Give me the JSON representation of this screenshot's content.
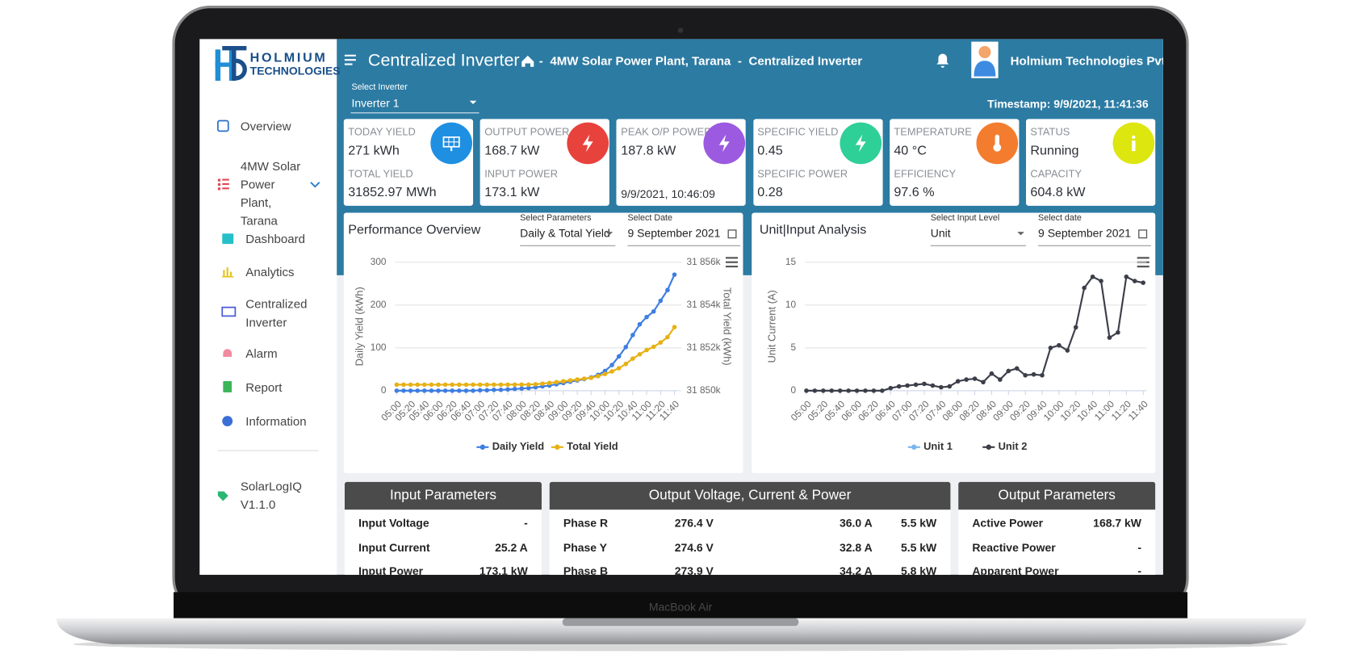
{
  "device_label": "MacBook Air",
  "sidebar": {
    "logo": {
      "line1": "HOLMIUM",
      "line2": "TECHNOLOGIES"
    },
    "items": [
      "Overview",
      "4MW Solar Power Plant, Tarana",
      "Dashboard",
      "Analytics",
      "Centralized Inverter",
      "Alarm",
      "Report",
      "Information"
    ],
    "version": "SolarLogIQ V1.1.0"
  },
  "header": {
    "title": "Centralized Inverter",
    "separator": "-",
    "breadcrumb": [
      "4MW Solar Power Plant, Tarana",
      "Centralized Inverter"
    ],
    "user": "Holmium Technologies Pvt Ltd"
  },
  "inverter_select": {
    "label": "Select Inverter",
    "value": "Inverter 1"
  },
  "timestamp": "Timestamp: 9/9/2021, 11:41:36",
  "cards": [
    {
      "label1": "TODAY YIELD",
      "value1": "271 kWh",
      "label2": "TOTAL YIELD",
      "value2": "31852.97 MWh",
      "color": "#1f8fe2"
    },
    {
      "label1": "OUTPUT POWER",
      "value1": "168.7 kW",
      "label2": "INPUT POWER",
      "value2": "173.1 kW",
      "color": "#e8423d"
    },
    {
      "label1": "PEAK O/P POWER",
      "value1": "187.8 kW",
      "value2": "9/9/2021, 10:46:09",
      "color": "#9b5ae0"
    },
    {
      "label1": "SPECIFIC YIELD",
      "value1": "0.45",
      "label2": "SPECIFIC POWER",
      "value2": "0.28",
      "color": "#2fcf98"
    },
    {
      "label1": "TEMPERATURE",
      "value1": "40 °C",
      "label2": "EFFICIENCY",
      "value2": "97.6 %",
      "color": "#f47c2e"
    },
    {
      "label1": "STATUS",
      "value1": "Running",
      "label2": "CAPACITY",
      "value2": "604.8 kW",
      "color": "#dde60f"
    }
  ],
  "performance_chart": {
    "type": "line",
    "title": "Performance Overview",
    "controls": [
      {
        "label": "Select Parameters",
        "value": "Daily & Total Yield"
      },
      {
        "label": "Select Date",
        "value": "9 September 2021"
      }
    ],
    "categories": [
      "05:00",
      null,
      "05:20",
      null,
      "05:40",
      null,
      "06:00",
      null,
      "06:20",
      null,
      "06:40",
      null,
      "07:00",
      null,
      "07:20",
      null,
      "07:40",
      null,
      "08:00",
      null,
      "08:20",
      null,
      "08:40",
      null,
      "09:00",
      null,
      "09:20",
      null,
      "09:40",
      null,
      "10:00",
      null,
      "10:20",
      null,
      "10:40",
      null,
      "11:00",
      null,
      "11:20",
      null,
      "11:40"
    ],
    "ylabel": "Daily Yield (kWh)",
    "y2label": "Total Yield (kWh)",
    "ylim": [
      0,
      300
    ],
    "yticks": [
      0,
      100,
      200,
      300
    ],
    "y2lim": [
      31850000,
      31856000
    ],
    "y2ticks": [
      {
        "value": 31850000,
        "label": "31 850k"
      },
      {
        "value": 31852000,
        "label": "31 852k"
      },
      {
        "value": 31854000,
        "label": "31 854k"
      },
      {
        "value": 31856000,
        "label": "31 856k"
      }
    ],
    "grid": true,
    "series": [
      {
        "name": "Daily Yield",
        "color": "#3f7ee2",
        "values": [
          0,
          0,
          0,
          0,
          0,
          0,
          0,
          0,
          0,
          0,
          0,
          0,
          1,
          1,
          2,
          2,
          3,
          4,
          5,
          6,
          8,
          10,
          12,
          15,
          18,
          21,
          24,
          27,
          31,
          37,
          46,
          60,
          80,
          102,
          130,
          155,
          172,
          185,
          210,
          235,
          271
        ]
      },
      {
        "name": "Total Yield",
        "color": "#e6b114",
        "axis": "y2",
        "values": [
          31850280,
          31850280,
          31850280,
          31850280,
          31850280,
          31850280,
          31850280,
          31850280,
          31850280,
          31850280,
          31850280,
          31850280,
          31850281,
          31850281,
          31850282,
          31850282,
          31850283,
          31850284,
          31850285,
          31850286,
          31850300,
          31850330,
          31850360,
          31850400,
          31850440,
          31850480,
          31850520,
          31850560,
          31850600,
          31850680,
          31850780,
          31850900,
          31851050,
          31851250,
          31851500,
          31851700,
          31851900,
          31852050,
          31852250,
          31852500,
          31852970
        ]
      }
    ]
  },
  "unit_chart": {
    "type": "line",
    "title": "Unit|Input Analysis",
    "controls": [
      {
        "label": "Select Input Level",
        "value": "Unit"
      },
      {
        "label": "Select date",
        "value": "9 September 2021"
      }
    ],
    "categories": [
      "05:00",
      null,
      "05:20",
      null,
      "05:40",
      null,
      "06:00",
      null,
      "06:20",
      null,
      "06:40",
      null,
      "07:00",
      null,
      "07:20",
      null,
      "07:40",
      null,
      "08:00",
      null,
      "08:20",
      null,
      "08:40",
      null,
      "09:00",
      null,
      "09:20",
      null,
      "09:40",
      null,
      "10:00",
      null,
      "10:20",
      null,
      "10:40",
      null,
      "11:00",
      null,
      "11:20",
      null,
      "11:40"
    ],
    "ylabel": "Unit Current (A)",
    "ylim": [
      0,
      15
    ],
    "yticks": [
      0,
      5,
      10,
      15
    ],
    "grid": true,
    "series": [
      {
        "name": "Unit 1",
        "color": "#7cb5ec",
        "values": [
          null,
          null,
          null,
          null,
          null,
          null,
          null,
          null,
          null,
          null,
          null,
          null,
          null,
          null,
          null,
          null,
          null,
          null,
          null,
          null,
          null,
          null,
          null,
          null,
          null,
          null,
          null,
          null,
          null,
          null,
          null,
          null,
          null,
          null,
          null,
          null,
          null,
          null,
          null,
          null,
          null
        ]
      },
      {
        "name": "Unit 2",
        "color": "#3c3f4a",
        "values": [
          0,
          0,
          0,
          0,
          0,
          0,
          0,
          0,
          0,
          0,
          0.3,
          0.5,
          0.6,
          0.7,
          0.8,
          0.6,
          0.4,
          0.5,
          1.1,
          1.3,
          1.4,
          1.0,
          2.0,
          1.3,
          2.3,
          2.6,
          1.8,
          1.9,
          1.8,
          5.0,
          5.3,
          4.7,
          7.4,
          12.0,
          13.3,
          12.8,
          6.2,
          6.8,
          13.3,
          12.8,
          12.6
        ]
      }
    ]
  },
  "tables": [
    {
      "title": "Input Parameters",
      "rows": [
        [
          "Input Voltage",
          "-"
        ],
        [
          "Input Current",
          "25.2 A"
        ],
        [
          "Input Power",
          "173.1 kW"
        ]
      ]
    },
    {
      "title": "Output Voltage, Current & Power",
      "rows": [
        [
          "Phase R",
          "276.4 V",
          "36.0 A",
          "5.5 kW"
        ],
        [
          "Phase Y",
          "274.6 V",
          "32.8 A",
          "5.5 kW"
        ],
        [
          "Phase B",
          "273.9 V",
          "34.2 A",
          "5.8 kW"
        ]
      ]
    },
    {
      "title": "Output Parameters",
      "rows": [
        [
          "Active Power",
          "168.7 kW"
        ],
        [
          "Reactive Power",
          "-"
        ],
        [
          "Apparent Power",
          "-"
        ]
      ]
    }
  ]
}
